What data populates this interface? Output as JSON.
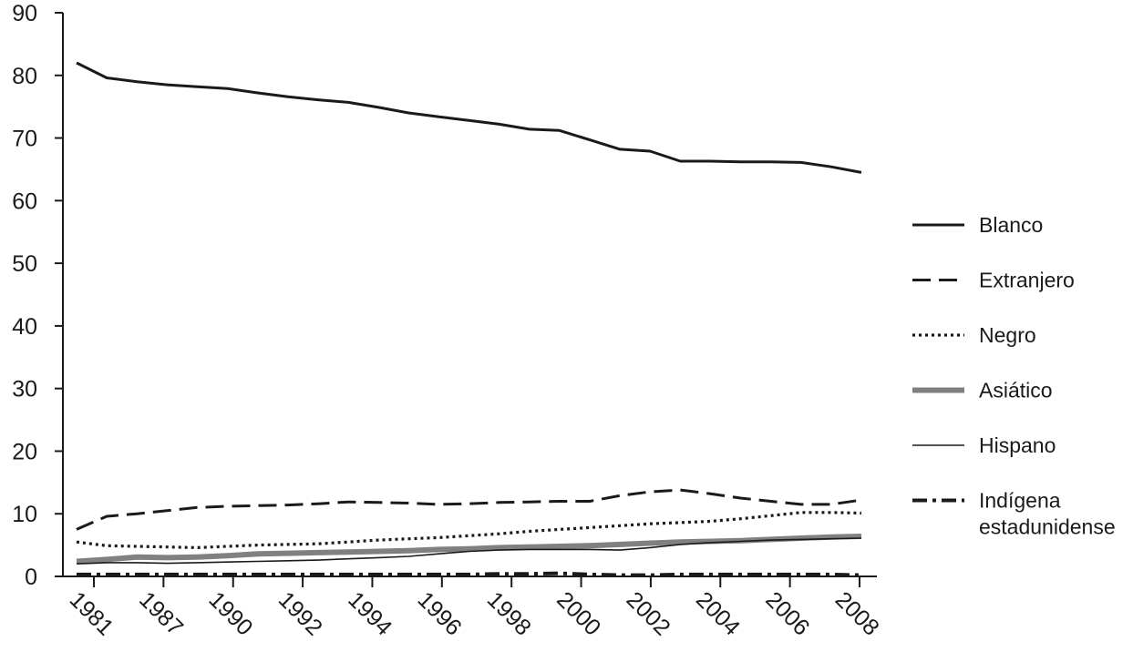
{
  "chart_data": {
    "type": "line",
    "title": "",
    "xlabel": "",
    "ylabel": "",
    "ylim": [
      0,
      90
    ],
    "y_ticks": [
      "0",
      "10",
      "20",
      "30",
      "40",
      "50",
      "60",
      "70",
      "80",
      "90"
    ],
    "x_tick_labels": [
      "1981",
      "1987",
      "1990",
      "1992",
      "1994",
      "1996",
      "1998",
      "2000",
      "2002",
      "2004",
      "2006",
      "2008"
    ],
    "x_tick_rotation": 45,
    "grid": false,
    "legend_position": "right",
    "series": [
      {
        "name": "Blanco",
        "style": "solid",
        "color": "#1a1a1a",
        "values": [
          82.0,
          79.6,
          79.0,
          78.5,
          78.2,
          77.9,
          77.2,
          76.6,
          76.1,
          75.7,
          74.9,
          74.0,
          73.4,
          72.8,
          72.2,
          71.4,
          71.2,
          69.7,
          68.2,
          67.9,
          66.3,
          66.3,
          66.2,
          66.2,
          66.1,
          65.4,
          64.5
        ]
      },
      {
        "name": "Extranjero",
        "style": "dashed",
        "color": "#1a1a1a",
        "values": [
          7.5,
          9.6,
          10.0,
          10.5,
          11.0,
          11.2,
          11.3,
          11.4,
          11.6,
          11.9,
          11.8,
          11.7,
          11.5,
          11.6,
          11.8,
          11.9,
          12.0,
          12.0,
          12.9,
          13.5,
          13.8,
          13.2,
          12.5,
          12.0,
          11.5,
          11.5,
          12.2
        ]
      },
      {
        "name": "Negro",
        "style": "dotted",
        "color": "#1a1a1a",
        "values": [
          5.5,
          4.9,
          4.8,
          4.7,
          4.6,
          4.8,
          5.0,
          5.1,
          5.2,
          5.5,
          5.8,
          6.0,
          6.2,
          6.5,
          6.8,
          7.2,
          7.5,
          7.8,
          8.1,
          8.4,
          8.6,
          8.8,
          9.2,
          9.7,
          10.2,
          10.2,
          10.1
        ]
      },
      {
        "name": "Asiático",
        "style": "thick",
        "color": "#808080",
        "values": [
          2.4,
          2.7,
          3.1,
          3.0,
          3.1,
          3.3,
          3.6,
          3.7,
          3.8,
          3.9,
          4.0,
          4.1,
          4.3,
          4.4,
          4.6,
          4.7,
          4.8,
          4.9,
          5.1,
          5.3,
          5.5,
          5.6,
          5.7,
          5.9,
          6.1,
          6.3,
          6.4
        ]
      },
      {
        "name": "Hispano",
        "style": "thin",
        "color": "#1a1a1a",
        "values": [
          2.0,
          2.2,
          2.2,
          2.1,
          2.2,
          2.3,
          2.4,
          2.5,
          2.6,
          2.8,
          3.0,
          3.2,
          3.6,
          4.0,
          4.2,
          4.3,
          4.3,
          4.3,
          4.2,
          4.6,
          5.1,
          5.4,
          5.6,
          5.8,
          5.9,
          6.0,
          6.1
        ]
      },
      {
        "name": "Indígena estadunidense",
        "name_lines": [
          "Indígena",
          "estadunidense"
        ],
        "style": "dashdot",
        "color": "#1a1a1a",
        "values": [
          0.3,
          0.3,
          0.3,
          0.3,
          0.3,
          0.3,
          0.3,
          0.3,
          0.3,
          0.3,
          0.3,
          0.3,
          0.3,
          0.3,
          0.4,
          0.4,
          0.5,
          0.3,
          0.2,
          0.2,
          0.3,
          0.3,
          0.3,
          0.3,
          0.3,
          0.3,
          0.2
        ]
      }
    ]
  }
}
